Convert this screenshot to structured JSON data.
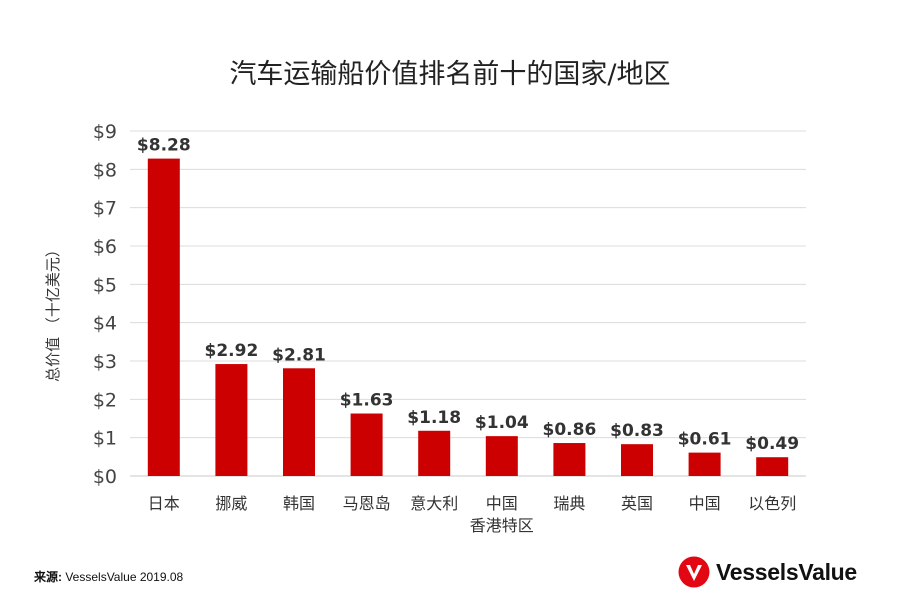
{
  "chart_data": {
    "type": "bar",
    "title": "汽车运输船价值排名前十的国家/地区",
    "ylabel": "总价值 （十亿美元）",
    "xlabel": "",
    "categories": [
      [
        "日本"
      ],
      [
        "挪威"
      ],
      [
        "韩国"
      ],
      [
        "马恩岛"
      ],
      [
        "意大利"
      ],
      [
        "中国",
        "香港特区"
      ],
      [
        "瑞典"
      ],
      [
        "英国"
      ],
      [
        "中国"
      ],
      [
        "以色列"
      ]
    ],
    "values": [
      8.28,
      2.92,
      2.81,
      1.63,
      1.18,
      1.04,
      0.86,
      0.83,
      0.61,
      0.49
    ],
    "data_labels": [
      "$8.28",
      "$2.92",
      "$2.81",
      "$1.63",
      "$1.18",
      "$1.04",
      "$0.86",
      "$0.83",
      "$0.61",
      "$0.49"
    ],
    "ylim": [
      0,
      9
    ],
    "yticks": [
      "$0",
      "$1",
      "$2",
      "$3",
      "$4",
      "$5",
      "$6",
      "$7",
      "$8",
      "$9"
    ],
    "grid": true,
    "bar_color": "#cc0000"
  },
  "footer": {
    "source_label": "来源:",
    "source_text": " VesselsValue 2019.08",
    "logo_text": "VesselsValue",
    "logo_color": "#e30613"
  }
}
